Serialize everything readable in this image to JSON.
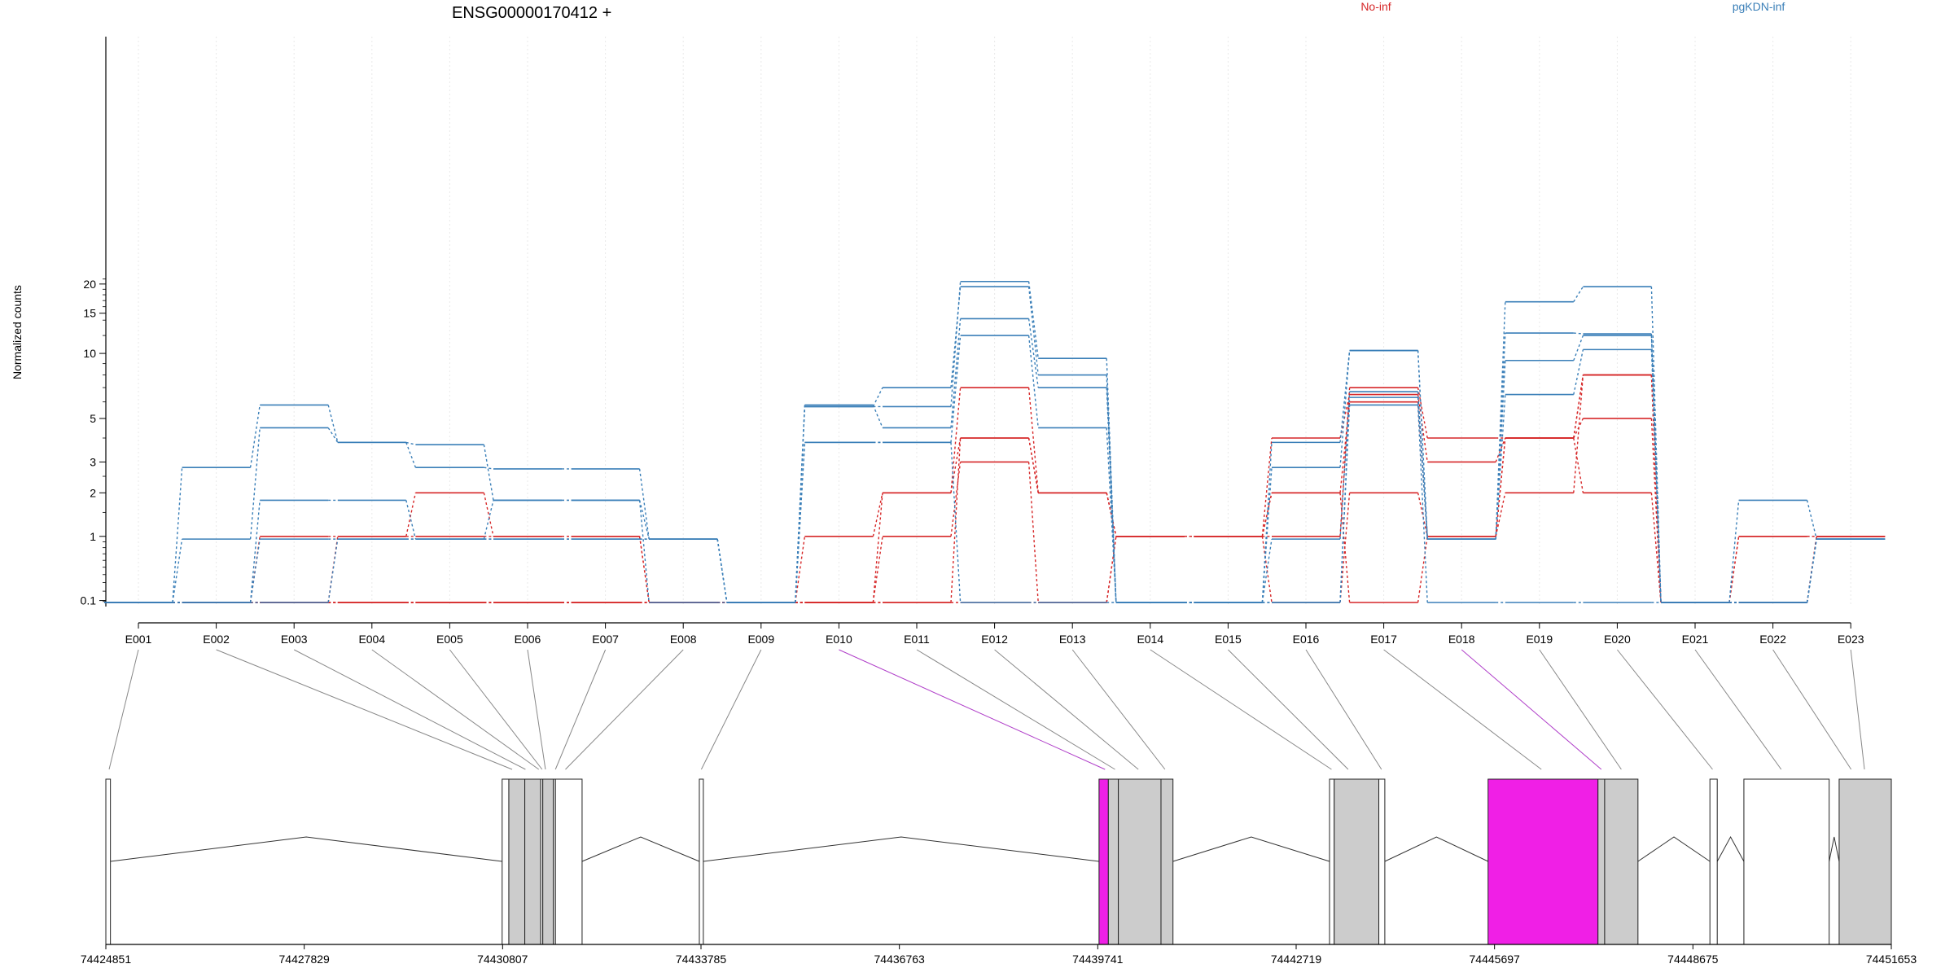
{
  "gene_title": "ENSG00000170412 +",
  "colors": {
    "No-inf": "#d62728",
    "pgKDN-inf": "#3a7fb8",
    "exon_fill": "#cccccc",
    "exon_highlight": "#f01fe6",
    "connector": "#888888",
    "connector_highlight": "#b03fc9"
  },
  "chart_data": {
    "type": "line",
    "title": "ENSG00000170412 +",
    "ylabel": "Normalized counts",
    "xlabel": "",
    "y_scale": "log(1 + y), pseudocount 0.08 floor",
    "yticks": [
      0.1,
      1,
      2,
      3,
      5,
      10,
      15,
      20
    ],
    "legend_placement": "top-right, horizontal",
    "grid": "faint vertical lines at exon positions",
    "categories": [
      "E001",
      "E002",
      "E003",
      "E004",
      "E005",
      "E006",
      "E007",
      "E008",
      "E009",
      "E010",
      "E011",
      "E012",
      "E013",
      "E014",
      "E015",
      "E016",
      "E017",
      "E018",
      "E019",
      "E020",
      "E021",
      "E022",
      "E023"
    ],
    "series": [
      {
        "name": "No-inf",
        "values": [
          0.08,
          0.08,
          1.0,
          1.0,
          2.0,
          1.0,
          1.0,
          0.08,
          0.08,
          1.0,
          2.0,
          7.0,
          2.0,
          1.0,
          1.0,
          1.0,
          7.0,
          4.0,
          4.0,
          8.0,
          0.08,
          1.0,
          1.0
        ]
      },
      {
        "name": "No-inf",
        "values": [
          0.08,
          0.08,
          0.08,
          1.0,
          1.0,
          1.0,
          1.0,
          0.08,
          0.08,
          0.08,
          2.0,
          4.0,
          2.0,
          1.0,
          1.0,
          4.0,
          6.5,
          3.0,
          4.0,
          5.0,
          0.08,
          1.0,
          1.0
        ]
      },
      {
        "name": "No-inf",
        "values": [
          0.08,
          0.08,
          0.08,
          0.08,
          0.08,
          0.08,
          0.08,
          0.08,
          0.08,
          0.08,
          1.0,
          3.0,
          0.08,
          1.0,
          1.0,
          2.0,
          6.0,
          1.0,
          2.0,
          8.0,
          0.08,
          0.08,
          1.0
        ]
      },
      {
        "name": "No-inf",
        "values": [
          0.08,
          0.08,
          0.08,
          0.08,
          0.08,
          0.08,
          0.08,
          0.08,
          0.08,
          0.08,
          0.08,
          4.0,
          2.0,
          1.0,
          1.0,
          0.08,
          2.0,
          1.0,
          4.0,
          2.0,
          0.08,
          0.08,
          1.0
        ]
      },
      {
        "name": "No-inf",
        "values": [
          0.08,
          0.08,
          0.08,
          0.08,
          0.08,
          0.08,
          0.08,
          0.08,
          0.08,
          0.08,
          0.08,
          0.08,
          0.08,
          1.0,
          1.0,
          2.0,
          0.08,
          1.0,
          4.0,
          8.0,
          0.08,
          0.08,
          1.0
        ]
      },
      {
        "name": "pgKDN-inf",
        "values": [
          0.08,
          2.8,
          5.8,
          3.8,
          2.8,
          2.75,
          2.75,
          0.95,
          0.08,
          5.7,
          5.7,
          20.5,
          9.5,
          0.08,
          0.08,
          2.8,
          10.3,
          0.95,
          16.8,
          19.5,
          0.08,
          1.8,
          0.95
        ]
      },
      {
        "name": "pgKDN-inf",
        "values": [
          0.08,
          0.95,
          4.5,
          3.8,
          3.7,
          1.8,
          1.8,
          0.95,
          0.08,
          5.7,
          7.0,
          19.5,
          8.0,
          0.08,
          0.08,
          3.8,
          10.3,
          0.95,
          12.3,
          12.2,
          0.08,
          0.08,
          0.95
        ]
      },
      {
        "name": "pgKDN-inf",
        "values": [
          0.08,
          0.08,
          1.8,
          1.8,
          0.95,
          0.95,
          0.95,
          0.95,
          0.08,
          5.8,
          4.5,
          14.2,
          7.0,
          0.08,
          0.08,
          0.95,
          6.7,
          0.95,
          9.3,
          12.0,
          0.08,
          0.08,
          0.95
        ]
      },
      {
        "name": "pgKDN-inf",
        "values": [
          0.08,
          0.08,
          0.95,
          0.95,
          0.95,
          0.95,
          0.95,
          0.95,
          0.08,
          3.8,
          3.8,
          12.0,
          4.5,
          0.08,
          0.08,
          0.08,
          6.3,
          0.95,
          6.5,
          10.4,
          0.08,
          0.08,
          0.95
        ]
      },
      {
        "name": "pgKDN-inf",
        "values": [
          0.08,
          0.08,
          0.08,
          0.95,
          0.95,
          1.8,
          1.8,
          0.08,
          0.08,
          3.8,
          3.8,
          0.08,
          0.08,
          0.08,
          0.08,
          0.08,
          5.8,
          0.08,
          0.08,
          0.08,
          0.08,
          0.08,
          0.95
        ]
      }
    ]
  },
  "gene_model": {
    "genomic_ticks": [
      "74424851",
      "74427829",
      "74430807",
      "74433785",
      "74436763",
      "74439741",
      "74442719",
      "74445697",
      "74448675",
      "74451653"
    ],
    "highlighted_exons": [
      "E010",
      "E018"
    ]
  }
}
